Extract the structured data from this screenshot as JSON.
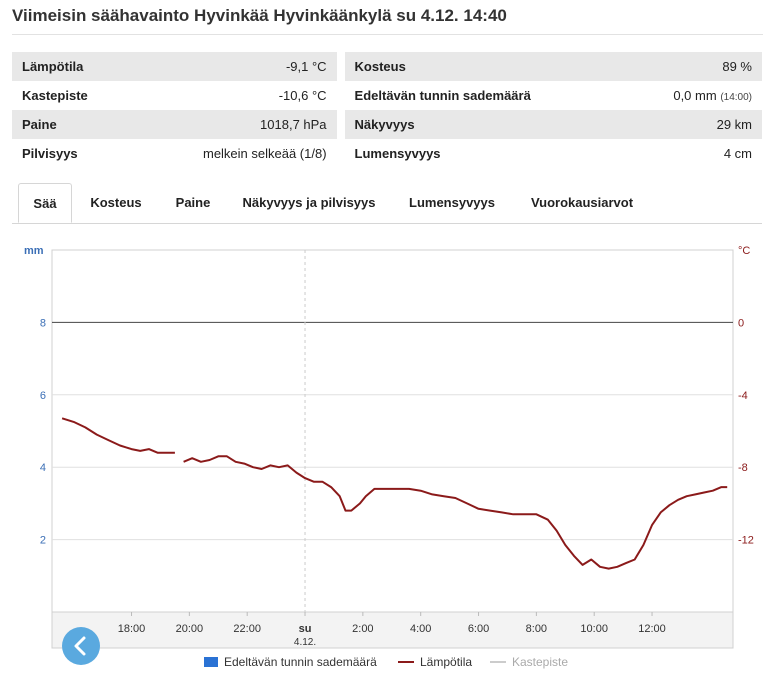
{
  "title": "Viimeisin säähavainto Hyvinkää Hyvinkäänkylä su 4.12. 14:40",
  "observations": [
    {
      "label": "Lämpötila",
      "value": "-9,1 °C",
      "label2": "Kosteus",
      "value2": "89 %",
      "value2_note": ""
    },
    {
      "label": "Kastepiste",
      "value": "-10,6 °C",
      "label2": "Edeltävän tunnin sademäärä",
      "value2": "0,0 mm",
      "value2_note": "(14:00)"
    },
    {
      "label": "Paine",
      "value": "1018,7 hPa",
      "label2": "Näkyvyys",
      "value2": "29 km",
      "value2_note": ""
    },
    {
      "label": "Pilvisyys",
      "value": "melkein selkeää (1/8)",
      "label2": "Lumensyvyys",
      "value2": "4 cm",
      "value2_note": ""
    }
  ],
  "tabs": [
    {
      "label": "Sää",
      "active": true
    },
    {
      "label": "Kosteus",
      "active": false
    },
    {
      "label": "Paine",
      "active": false
    },
    {
      "label": "Näkyvyys ja pilvisyys",
      "active": false
    },
    {
      "label": "Lumensyvyys",
      "active": false
    },
    {
      "label": "Vuorokausiarvot",
      "active": false
    }
  ],
  "nav": {
    "icon": "chevron-left-icon"
  },
  "chart_data": {
    "type": "line",
    "left_axis": {
      "label": "mm",
      "ticks": [
        2,
        4,
        6,
        8
      ],
      "range": [
        0,
        10
      ],
      "color": "#3b6fb6"
    },
    "right_axis": {
      "label": "°C",
      "ticks": [
        0,
        -4,
        -8,
        -12
      ],
      "range": [
        -16,
        4
      ],
      "color": "#8b1a1a"
    },
    "x_range": [
      15.25,
      38.8
    ],
    "x_ticks": [
      {
        "x": 18,
        "label": "18:00",
        "sub": ""
      },
      {
        "x": 20,
        "label": "20:00",
        "sub": ""
      },
      {
        "x": 22,
        "label": "22:00",
        "sub": ""
      },
      {
        "x": 24,
        "label": "su",
        "sub": "4.12."
      },
      {
        "x": 26,
        "label": "2:00",
        "sub": ""
      },
      {
        "x": 28,
        "label": "4:00",
        "sub": ""
      },
      {
        "x": 30,
        "label": "6:00",
        "sub": ""
      },
      {
        "x": 32,
        "label": "8:00",
        "sub": ""
      },
      {
        "x": 34,
        "label": "10:00",
        "sub": ""
      },
      {
        "x": 36,
        "label": "12:00",
        "sub": ""
      }
    ],
    "series": [
      {
        "name": "Edeltävän tunnin sademäärä",
        "color": "#2a72d4",
        "values": []
      },
      {
        "name": "Lämpötila",
        "color": "#8b1a1a",
        "segments": [
          [
            [
              15.6,
              -5.3
            ],
            [
              16.0,
              -5.5
            ],
            [
              16.4,
              -5.8
            ],
            [
              16.8,
              -6.2
            ],
            [
              17.2,
              -6.5
            ],
            [
              17.6,
              -6.8
            ],
            [
              18.0,
              -7.0
            ],
            [
              18.3,
              -7.1
            ],
            [
              18.6,
              -7.0
            ],
            [
              18.9,
              -7.2
            ],
            [
              19.2,
              -7.2
            ],
            [
              19.5,
              -7.2
            ]
          ],
          [
            [
              19.8,
              -7.7
            ],
            [
              20.1,
              -7.5
            ],
            [
              20.4,
              -7.7
            ],
            [
              20.7,
              -7.6
            ],
            [
              21.0,
              -7.4
            ],
            [
              21.3,
              -7.4
            ],
            [
              21.6,
              -7.7
            ],
            [
              21.9,
              -7.8
            ],
            [
              22.2,
              -8.0
            ],
            [
              22.5,
              -8.1
            ],
            [
              22.8,
              -7.9
            ],
            [
              23.1,
              -8.0
            ],
            [
              23.4,
              -7.9
            ],
            [
              23.7,
              -8.3
            ],
            [
              24.0,
              -8.6
            ],
            [
              24.3,
              -8.8
            ],
            [
              24.6,
              -8.8
            ],
            [
              24.9,
              -9.1
            ],
            [
              25.2,
              -9.6
            ],
            [
              25.4,
              -10.4
            ],
            [
              25.6,
              -10.4
            ],
            [
              25.9,
              -10.0
            ],
            [
              26.1,
              -9.6
            ],
            [
              26.4,
              -9.2
            ],
            [
              26.7,
              -9.2
            ],
            [
              27.0,
              -9.2
            ],
            [
              27.3,
              -9.2
            ],
            [
              27.6,
              -9.2
            ],
            [
              28.0,
              -9.3
            ],
            [
              28.4,
              -9.5
            ],
            [
              28.8,
              -9.6
            ],
            [
              29.2,
              -9.7
            ],
            [
              29.6,
              -10.0
            ],
            [
              30.0,
              -10.3
            ],
            [
              30.4,
              -10.4
            ],
            [
              30.8,
              -10.5
            ],
            [
              31.2,
              -10.6
            ],
            [
              31.6,
              -10.6
            ],
            [
              32.0,
              -10.6
            ],
            [
              32.4,
              -10.9
            ],
            [
              32.7,
              -11.5
            ],
            [
              33.0,
              -12.3
            ],
            [
              33.3,
              -12.9
            ],
            [
              33.6,
              -13.4
            ],
            [
              33.9,
              -13.1
            ],
            [
              34.2,
              -13.5
            ],
            [
              34.5,
              -13.6
            ],
            [
              34.8,
              -13.5
            ],
            [
              35.1,
              -13.3
            ],
            [
              35.4,
              -13.1
            ],
            [
              35.7,
              -12.3
            ],
            [
              36.0,
              -11.2
            ],
            [
              36.3,
              -10.5
            ],
            [
              36.6,
              -10.1
            ],
            [
              36.9,
              -9.8
            ],
            [
              37.2,
              -9.6
            ],
            [
              37.5,
              -9.5
            ],
            [
              37.8,
              -9.4
            ],
            [
              38.1,
              -9.3
            ],
            [
              38.4,
              -9.1
            ],
            [
              38.6,
              -9.1
            ]
          ]
        ]
      },
      {
        "name": "Kastepiste",
        "color": "#cccccc",
        "hidden": true,
        "values": []
      }
    ],
    "legend_placement": "bottom-center",
    "grid": true
  }
}
